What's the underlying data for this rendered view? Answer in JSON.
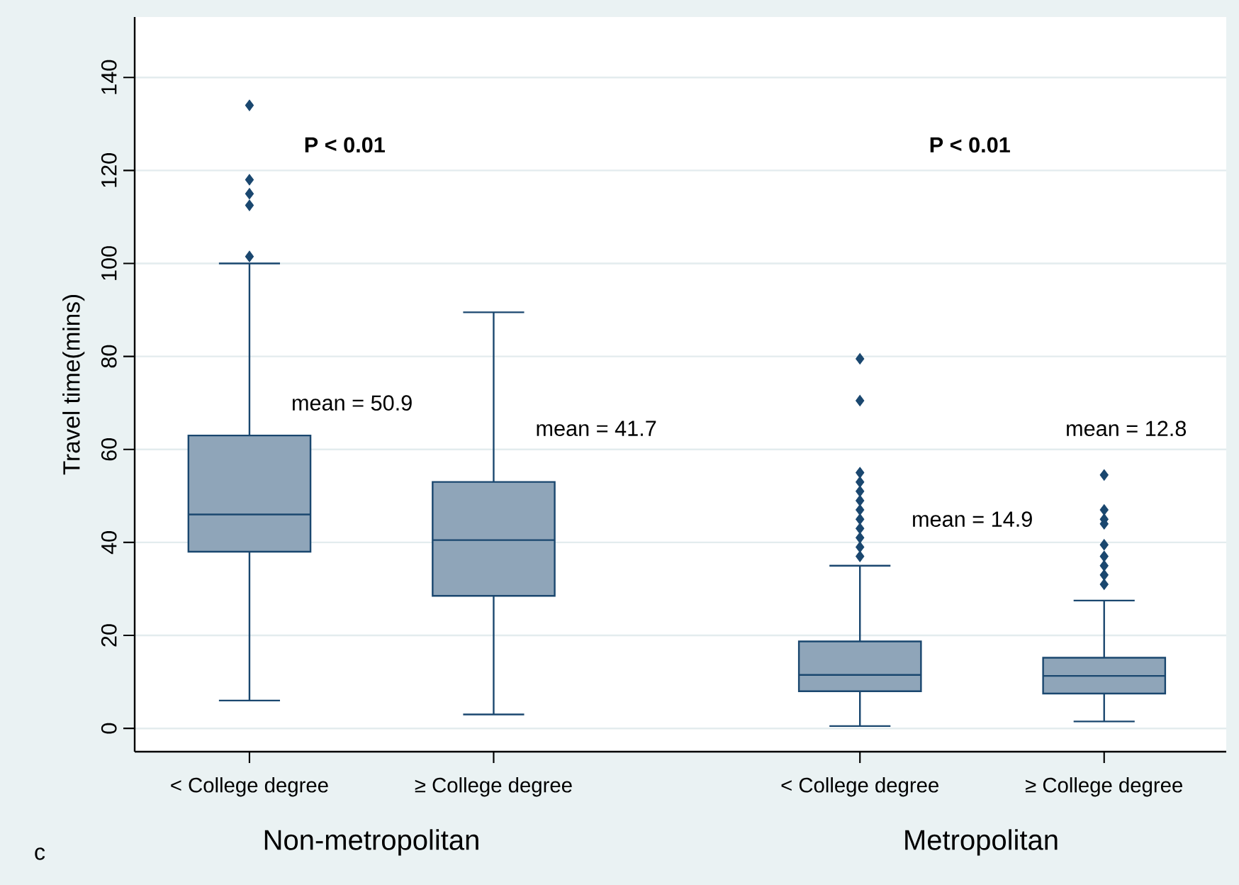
{
  "chart_data": {
    "type": "box",
    "categories": [
      "< College degree",
      "≥ College degree",
      "< College degree",
      "≥ College degree"
    ],
    "ylabel": "Travel time(mins)",
    "ylim": [
      -5,
      153
    ],
    "yticks": [
      0,
      20,
      40,
      60,
      80,
      100,
      120,
      140
    ],
    "grid": "y",
    "marker": "diamond",
    "series": [
      {
        "color": "#8fa5b9",
        "boxes": [
          {
            "low": 6,
            "q1": 38,
            "median": 46,
            "q3": 63,
            "high": 100,
            "outliers": [
              101.5,
              112.5,
              115,
              118,
              134
            ]
          },
          {
            "low": 3,
            "q1": 28.5,
            "median": 40.5,
            "q3": 53,
            "high": 89.5
          },
          {
            "low": 0.5,
            "q1": 8,
            "median": 11.5,
            "q3": 18.7,
            "high": 35,
            "outliers": [
              37,
              39,
              41,
              43,
              45,
              47,
              49,
              51,
              53,
              55,
              70.5,
              79.5
            ]
          },
          {
            "low": 1.5,
            "q1": 7.5,
            "median": 11.3,
            "q3": 15.2,
            "high": 27.5,
            "outliers": [
              31,
              33,
              35,
              37,
              39.5,
              44,
              45,
              47,
              54.5
            ]
          }
        ]
      }
    ],
    "annotations": [
      "P < 0.01",
      "P < 0.01",
      "mean = 50.9",
      "mean = 41.7",
      "mean = 14.9",
      "mean = 12.8",
      "Non-metropolitan",
      "Metropolitan",
      "c"
    ]
  }
}
